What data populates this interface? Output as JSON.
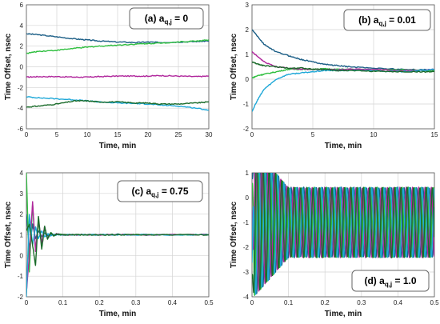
{
  "series_colors": [
    "#1b5e86",
    "#2fbf3f",
    "#b0279c",
    "#1fa8d8",
    "#1a6b2a"
  ],
  "chart_data": [
    {
      "type": "line",
      "label": {
        "prefix": "(a) a",
        "sub": "q,j",
        "suffix": " = 0"
      },
      "xlabel": "Time, min",
      "ylabel": "Time Offset, nsec",
      "xlim": [
        0,
        30
      ],
      "ylim": [
        -6,
        6
      ],
      "xticks": [
        "0",
        "5",
        "10",
        "15",
        "20",
        "25",
        "30"
      ],
      "yticks": [
        "-6",
        "-4",
        "-2",
        "0",
        "2",
        "4",
        "6"
      ],
      "grid": true,
      "series": [
        {
          "color": "#1b5e86",
          "x": [
            0,
            2,
            5,
            8,
            10,
            12,
            15,
            18,
            20,
            22,
            25,
            28,
            30
          ],
          "y": [
            3.2,
            3.1,
            2.9,
            2.7,
            2.6,
            2.5,
            2.4,
            2.35,
            2.4,
            2.35,
            2.4,
            2.45,
            2.5
          ]
        },
        {
          "color": "#2fbf3f",
          "x": [
            0,
            2,
            5,
            8,
            10,
            12,
            15,
            18,
            20,
            22,
            25,
            28,
            30
          ],
          "y": [
            1.3,
            1.5,
            1.6,
            1.8,
            1.9,
            2.0,
            2.1,
            2.2,
            2.25,
            2.3,
            2.4,
            2.5,
            2.6
          ]
        },
        {
          "color": "#b0279c",
          "x": [
            0,
            2,
            5,
            8,
            10,
            12,
            15,
            18,
            20,
            22,
            25,
            28,
            30
          ],
          "y": [
            -1.0,
            -0.95,
            -0.95,
            -1.0,
            -1.0,
            -0.95,
            -0.9,
            -0.9,
            -0.9,
            -0.85,
            -0.9,
            -0.95,
            -0.9
          ]
        },
        {
          "color": "#1fa8d8",
          "x": [
            0,
            2,
            5,
            8,
            10,
            12,
            15,
            18,
            20,
            22,
            25,
            28,
            30
          ],
          "y": [
            -2.9,
            -3.0,
            -3.1,
            -3.2,
            -3.3,
            -3.4,
            -3.5,
            -3.55,
            -3.6,
            -3.7,
            -3.8,
            -4.0,
            -4.2
          ]
        },
        {
          "color": "#1a6b2a",
          "x": [
            0,
            2,
            5,
            8,
            10,
            12,
            15,
            18,
            20,
            22,
            25,
            28,
            30
          ],
          "y": [
            -3.9,
            -3.8,
            -3.6,
            -3.3,
            -3.3,
            -3.4,
            -3.4,
            -3.5,
            -3.5,
            -3.6,
            -3.6,
            -3.5,
            -3.4
          ]
        }
      ]
    },
    {
      "type": "line",
      "label": {
        "prefix": "(b) a",
        "sub": "q,j",
        "suffix": " = 0.01"
      },
      "xlabel": "Time, min",
      "ylabel": "Time Offset, nsec",
      "xlim": [
        0,
        15
      ],
      "ylim": [
        -2,
        3
      ],
      "xticks": [
        "0",
        "5",
        "10",
        "15"
      ],
      "yticks": [
        "-2",
        "-1",
        "0",
        "1",
        "2",
        "3"
      ],
      "grid": true,
      "series": [
        {
          "color": "#1b5e86",
          "x": [
            0,
            0.5,
            1,
            2,
            3,
            4,
            5,
            6,
            7,
            8,
            10,
            12,
            14,
            15
          ],
          "y": [
            2.0,
            1.7,
            1.4,
            1.1,
            0.95,
            0.8,
            0.7,
            0.6,
            0.55,
            0.5,
            0.45,
            0.4,
            0.38,
            0.38
          ]
        },
        {
          "color": "#2fbf3f",
          "x": [
            0,
            0.5,
            1,
            2,
            3,
            4,
            5,
            6,
            7,
            8,
            10,
            12,
            14,
            15
          ],
          "y": [
            0.05,
            0.15,
            0.2,
            0.3,
            0.4,
            0.4,
            0.4,
            0.42,
            0.4,
            0.4,
            0.38,
            0.38,
            0.35,
            0.35
          ]
        },
        {
          "color": "#b0279c",
          "x": [
            0,
            0.5,
            1,
            2,
            3,
            4,
            5,
            6,
            7,
            8,
            10,
            12,
            14,
            15
          ],
          "y": [
            1.1,
            0.9,
            0.7,
            0.5,
            0.45,
            0.4,
            0.4,
            0.4,
            0.38,
            0.4,
            0.4,
            0.35,
            0.35,
            0.4
          ]
        },
        {
          "color": "#1fa8d8",
          "x": [
            0,
            0.5,
            1,
            2,
            3,
            4,
            5,
            6,
            7,
            8,
            10,
            12,
            14,
            15
          ],
          "y": [
            -1.3,
            -0.8,
            -0.4,
            0.0,
            0.2,
            0.25,
            0.3,
            0.35,
            0.35,
            0.35,
            0.35,
            0.3,
            0.35,
            0.4
          ]
        },
        {
          "color": "#1a6b2a",
          "x": [
            0,
            0.5,
            1,
            2,
            3,
            4,
            5,
            6,
            7,
            8,
            10,
            12,
            14,
            15
          ],
          "y": [
            0.7,
            0.6,
            0.55,
            0.5,
            0.45,
            0.45,
            0.4,
            0.4,
            0.35,
            0.35,
            0.32,
            0.3,
            0.3,
            0.3
          ]
        }
      ]
    },
    {
      "type": "line",
      "label": {
        "prefix": "(c) a",
        "sub": "q,j",
        "suffix": " = 0.75"
      },
      "xlabel": "Time, min",
      "ylabel": "Time Offset, nsec",
      "xlim": [
        0,
        0.5
      ],
      "ylim": [
        -2,
        4
      ],
      "xticks": [
        "0",
        "0.1",
        "0.2",
        "0.3",
        "0.4",
        "0.5"
      ],
      "yticks": [
        "-2",
        "-1",
        "0",
        "1",
        "2",
        "3",
        "4"
      ],
      "grid": true,
      "series": [
        {
          "color": "#1b5e86",
          "x": [
            0,
            0.008,
            0.017,
            0.025,
            0.033,
            0.042,
            0.05,
            0.058,
            0.067,
            0.075,
            0.083,
            0.1,
            0.125,
            0.15,
            0.2,
            0.25,
            0.3,
            0.4,
            0.5
          ],
          "y": [
            2.0,
            0.3,
            1.5,
            0.8,
            1.2,
            0.9,
            1.1,
            0.95,
            1.05,
            1.0,
            1.02,
            1.0,
            1.0,
            1.0,
            1.0,
            1.02,
            1.0,
            1.0,
            1.0
          ]
        },
        {
          "color": "#2fbf3f",
          "x": [
            0,
            0.008,
            0.017,
            0.025,
            0.033,
            0.042,
            0.05,
            0.058,
            0.067,
            0.075,
            0.083,
            0.1,
            0.125,
            0.15,
            0.2,
            0.25,
            0.3,
            0.4,
            0.5
          ],
          "y": [
            4.0,
            -0.8,
            2.5,
            0.2,
            1.6,
            0.6,
            1.3,
            0.8,
            1.1,
            0.95,
            1.05,
            1.0,
            1.0,
            1.0,
            1.0,
            1.0,
            1.0,
            1.0,
            1.0
          ]
        },
        {
          "color": "#b0279c",
          "x": [
            0,
            0.008,
            0.017,
            0.025,
            0.033,
            0.042,
            0.05,
            0.058,
            0.067,
            0.075,
            0.083,
            0.1,
            0.125,
            0.15,
            0.2,
            0.25,
            0.3,
            0.4,
            0.5
          ],
          "y": [
            -1.8,
            0.0,
            2.6,
            0.2,
            1.7,
            0.6,
            1.4,
            0.8,
            1.1,
            0.95,
            1.05,
            1.0,
            1.0,
            1.0,
            1.0,
            1.0,
            1.0,
            1.0,
            1.0
          ]
        },
        {
          "color": "#1fa8d8",
          "x": [
            0,
            0.008,
            0.017,
            0.025,
            0.033,
            0.042,
            0.05,
            0.058,
            0.067,
            0.075,
            0.083,
            0.1,
            0.125,
            0.15,
            0.2,
            0.25,
            0.3,
            0.4,
            0.5
          ],
          "y": [
            -2.0,
            2.0,
            0.5,
            1.4,
            0.8,
            1.2,
            0.9,
            1.05,
            0.95,
            1.0,
            1.0,
            1.0,
            1.0,
            1.0,
            1.0,
            1.0,
            1.0,
            1.0,
            1.0
          ]
        },
        {
          "color": "#1a6b2a",
          "x": [
            0,
            0.008,
            0.017,
            0.025,
            0.033,
            0.042,
            0.05,
            0.058,
            0.067,
            0.075,
            0.083,
            0.1,
            0.125,
            0.15,
            0.2,
            0.25,
            0.3,
            0.4,
            0.5
          ],
          "y": [
            1.2,
            1.5,
            0.5,
            -0.5,
            1.9,
            0.3,
            1.4,
            0.8,
            1.1,
            0.95,
            1.02,
            1.0,
            1.0,
            1.0,
            1.0,
            1.0,
            1.0,
            1.0,
            1.0
          ]
        }
      ]
    },
    {
      "type": "line",
      "label": {
        "prefix": "(d) a",
        "sub": "q,j",
        "suffix": " = 1.0"
      },
      "xlabel": "Time, min",
      "ylabel": "Time Offset, nsec",
      "xlim": [
        0,
        0.5
      ],
      "ylim": [
        -4,
        1
      ],
      "xticks": [
        "0",
        "0.1",
        "0.2",
        "0.3",
        "0.4",
        "0.5"
      ],
      "yticks": [
        "-4",
        "-3",
        "-2",
        "-1",
        "0",
        "1"
      ],
      "grid": true,
      "oscillation": {
        "center": -1.0,
        "amplitude": 1.4,
        "period_min": 0.0172,
        "transient_end_min": 0.1
      },
      "series": [
        {
          "color": "#1b5e86",
          "phase_deg": 0,
          "start_value": 0.9
        },
        {
          "color": "#2fbf3f",
          "phase_deg": 120,
          "start_value": 0.5
        },
        {
          "color": "#b0279c",
          "phase_deg": 240,
          "start_value": -0.5
        },
        {
          "color": "#1fa8d8",
          "phase_deg": 60,
          "start_value": -2.6
        },
        {
          "color": "#1a6b2a",
          "phase_deg": 180,
          "start_value": -3.3
        }
      ]
    }
  ]
}
